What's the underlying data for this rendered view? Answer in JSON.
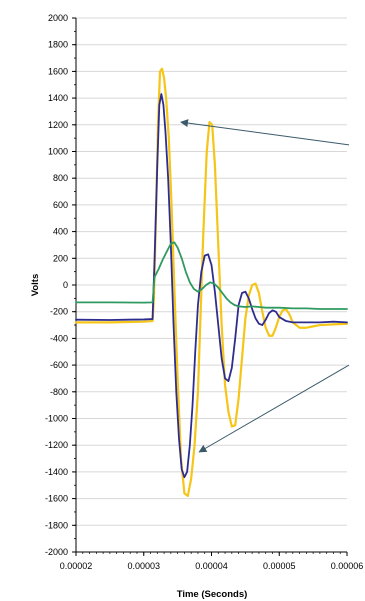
{
  "chart_data": {
    "type": "line",
    "title": "",
    "xlabel": "Time (Seconds)",
    "ylabel": "Volts",
    "xlim": [
      2e-05,
      6e-05
    ],
    "ylim": [
      -2000,
      2000
    ],
    "x_ticks": [
      "0.00002",
      "0.00003",
      "0.00004",
      "0.00005",
      "0.00006"
    ],
    "y_ticks": [
      "2000",
      "1800",
      "1600",
      "1400",
      "1200",
      "1000",
      "800",
      "600",
      "400",
      "200",
      "0",
      "-200",
      "-400",
      "-600",
      "-800",
      "-1000",
      "-1200",
      "-1400",
      "-1600",
      "-1800",
      "-2000"
    ],
    "grid": "horizontal",
    "legend": "none",
    "series": [
      {
        "color": "#f5c518",
        "points": [
          [
            2e-05,
            -280
          ],
          [
            2.5e-05,
            -280
          ],
          [
            3e-05,
            -275
          ],
          [
            3.13e-05,
            -270
          ],
          [
            3.15e-05,
            -100
          ],
          [
            3.18e-05,
            500
          ],
          [
            3.21e-05,
            1200
          ],
          [
            3.24e-05,
            1600
          ],
          [
            3.27e-05,
            1620
          ],
          [
            3.3e-05,
            1550
          ],
          [
            3.33e-05,
            1400
          ],
          [
            3.37e-05,
            1100
          ],
          [
            3.41e-05,
            600
          ],
          [
            3.45e-05,
            0
          ],
          [
            3.5e-05,
            -700
          ],
          [
            3.55e-05,
            -1300
          ],
          [
            3.6e-05,
            -1560
          ],
          [
            3.65e-05,
            -1580
          ],
          [
            3.7e-05,
            -1450
          ],
          [
            3.75e-05,
            -1200
          ],
          [
            3.8e-05,
            -800
          ],
          [
            3.84e-05,
            -200
          ],
          [
            3.88e-05,
            400
          ],
          [
            3.93e-05,
            1000
          ],
          [
            3.97e-05,
            1220
          ],
          [
            4.01e-05,
            1200
          ],
          [
            4.05e-05,
            900
          ],
          [
            4.1e-05,
            300
          ],
          [
            4.15e-05,
            -300
          ],
          [
            4.2e-05,
            -750
          ],
          [
            4.25e-05,
            -950
          ],
          [
            4.3e-05,
            -1060
          ],
          [
            4.35e-05,
            -1050
          ],
          [
            4.4e-05,
            -850
          ],
          [
            4.45e-05,
            -550
          ],
          [
            4.5e-05,
            -250
          ],
          [
            4.55e-05,
            -80
          ],
          [
            4.6e-05,
            0
          ],
          [
            4.65e-05,
            10
          ],
          [
            4.7e-05,
            -60
          ],
          [
            4.75e-05,
            -200
          ],
          [
            4.8e-05,
            -320
          ],
          [
            4.85e-05,
            -380
          ],
          [
            4.9e-05,
            -380
          ],
          [
            4.95e-05,
            -320
          ],
          [
            5e-05,
            -240
          ],
          [
            5.05e-05,
            -190
          ],
          [
            5.1e-05,
            -180
          ],
          [
            5.15e-05,
            -220
          ],
          [
            5.2e-05,
            -280
          ],
          [
            5.3e-05,
            -320
          ],
          [
            5.4e-05,
            -320
          ],
          [
            5.5e-05,
            -310
          ],
          [
            5.6e-05,
            -300
          ],
          [
            5.8e-05,
            -295
          ],
          [
            6e-05,
            -290
          ]
        ]
      },
      {
        "color": "#2e2d8f",
        "points": [
          [
            2e-05,
            -260
          ],
          [
            2.5e-05,
            -262
          ],
          [
            3e-05,
            -258
          ],
          [
            3.13e-05,
            -255
          ],
          [
            3.16e-05,
            200
          ],
          [
            3.2e-05,
            900
          ],
          [
            3.23e-05,
            1350
          ],
          [
            3.26e-05,
            1430
          ],
          [
            3.29e-05,
            1350
          ],
          [
            3.32e-05,
            1150
          ],
          [
            3.36e-05,
            800
          ],
          [
            3.4e-05,
            300
          ],
          [
            3.44e-05,
            -300
          ],
          [
            3.48e-05,
            -800
          ],
          [
            3.52e-05,
            -1150
          ],
          [
            3.56e-05,
            -1380
          ],
          [
            3.6e-05,
            -1440
          ],
          [
            3.64e-05,
            -1400
          ],
          [
            3.68e-05,
            -1200
          ],
          [
            3.72e-05,
            -900
          ],
          [
            3.76e-05,
            -500
          ],
          [
            3.8e-05,
            -150
          ],
          [
            3.85e-05,
            100
          ],
          [
            3.9e-05,
            220
          ],
          [
            3.95e-05,
            230
          ],
          [
            4e-05,
            150
          ],
          [
            4.05e-05,
            -50
          ],
          [
            4.1e-05,
            -300
          ],
          [
            4.15e-05,
            -550
          ],
          [
            4.2e-05,
            -700
          ],
          [
            4.25e-05,
            -720
          ],
          [
            4.3e-05,
            -620
          ],
          [
            4.35e-05,
            -400
          ],
          [
            4.4e-05,
            -150
          ],
          [
            4.45e-05,
            -60
          ],
          [
            4.5e-05,
            -50
          ],
          [
            4.55e-05,
            -100
          ],
          [
            4.6e-05,
            -180
          ],
          [
            4.65e-05,
            -250
          ],
          [
            4.7e-05,
            -290
          ],
          [
            4.75e-05,
            -300
          ],
          [
            4.8e-05,
            -260
          ],
          [
            4.85e-05,
            -210
          ],
          [
            4.9e-05,
            -190
          ],
          [
            4.95e-05,
            -200
          ],
          [
            5e-05,
            -240
          ],
          [
            5.1e-05,
            -270
          ],
          [
            5.2e-05,
            -280
          ],
          [
            5.4e-05,
            -280
          ],
          [
            5.6e-05,
            -280
          ],
          [
            5.8e-05,
            -275
          ],
          [
            6e-05,
            -280
          ]
        ]
      },
      {
        "color": "#2f9a5f",
        "points": [
          [
            2e-05,
            -130
          ],
          [
            2.5e-05,
            -130
          ],
          [
            3e-05,
            -132
          ],
          [
            3.13e-05,
            -130
          ],
          [
            3.16e-05,
            60
          ],
          [
            3.22e-05,
            120
          ],
          [
            3.28e-05,
            190
          ],
          [
            3.34e-05,
            250
          ],
          [
            3.4e-05,
            310
          ],
          [
            3.45e-05,
            320
          ],
          [
            3.5e-05,
            280
          ],
          [
            3.56e-05,
            200
          ],
          [
            3.62e-05,
            100
          ],
          [
            3.68e-05,
            20
          ],
          [
            3.74e-05,
            -30
          ],
          [
            3.8e-05,
            -50
          ],
          [
            3.86e-05,
            -30
          ],
          [
            3.92e-05,
            0
          ],
          [
            3.98e-05,
            20
          ],
          [
            4.04e-05,
            10
          ],
          [
            4.1e-05,
            -20
          ],
          [
            4.16e-05,
            -60
          ],
          [
            4.22e-05,
            -100
          ],
          [
            4.28e-05,
            -130
          ],
          [
            4.34e-05,
            -150
          ],
          [
            4.4e-05,
            -160
          ],
          [
            4.5e-05,
            -165
          ],
          [
            4.6e-05,
            -160
          ],
          [
            4.7e-05,
            -165
          ],
          [
            4.8e-05,
            -170
          ],
          [
            4.9e-05,
            -170
          ],
          [
            5e-05,
            -170
          ],
          [
            5.2e-05,
            -175
          ],
          [
            5.4e-05,
            -175
          ],
          [
            5.6e-05,
            -180
          ],
          [
            5.8e-05,
            -180
          ],
          [
            6e-05,
            -180
          ]
        ]
      }
    ],
    "annotations": [
      {
        "type": "arrow",
        "from": [
          6.03e-05,
          1050
        ],
        "to": [
          3.55e-05,
          1220
        ]
      },
      {
        "type": "arrow",
        "from": [
          6.03e-05,
          -600
        ],
        "to": [
          3.82e-05,
          -1250
        ]
      }
    ]
  }
}
